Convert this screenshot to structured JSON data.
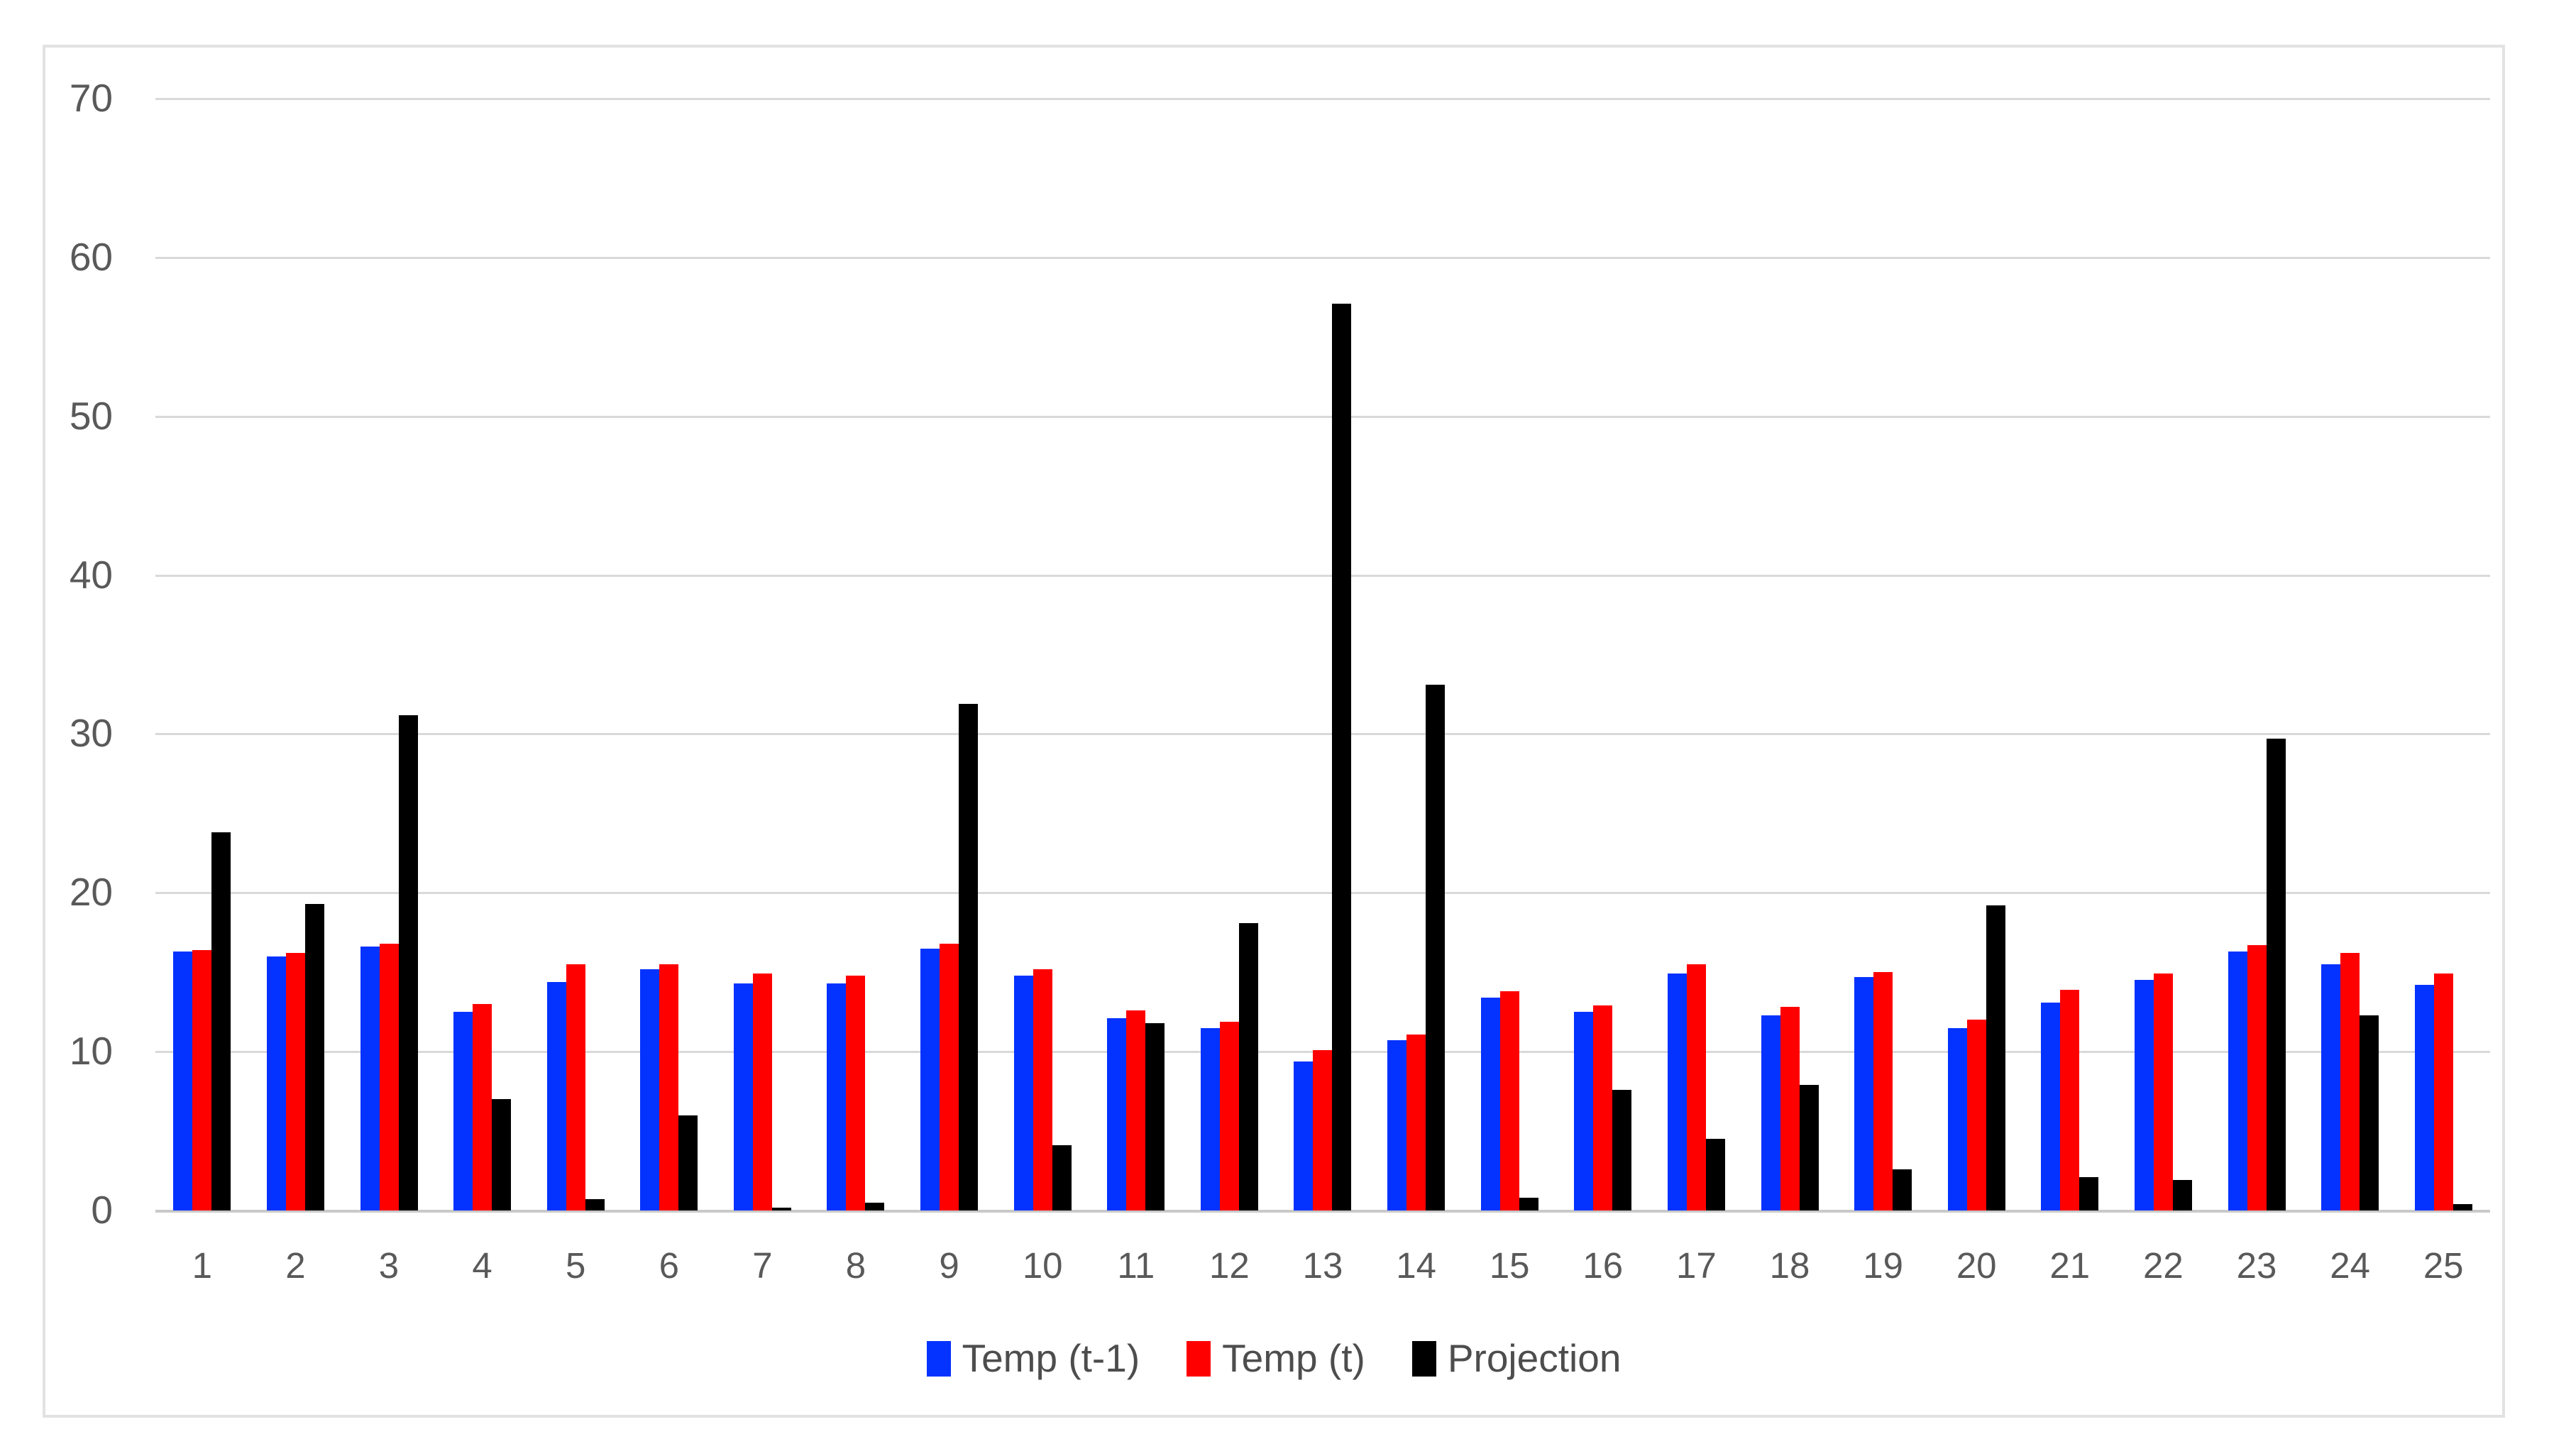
{
  "chart_data": {
    "type": "bar",
    "title": "",
    "xlabel": "",
    "ylabel": "",
    "categories": [
      "1",
      "2",
      "3",
      "4",
      "5",
      "6",
      "7",
      "8",
      "9",
      "10",
      "11",
      "12",
      "13",
      "14",
      "15",
      "16",
      "17",
      "18",
      "19",
      "20",
      "21",
      "22",
      "23",
      "24",
      "25"
    ],
    "series": [
      {
        "name": "Temp (t-1)",
        "color": "#0432ff",
        "values": [
          16.3,
          16.0,
          16.6,
          12.5,
          14.4,
          15.2,
          14.3,
          14.3,
          16.5,
          14.8,
          12.1,
          11.5,
          9.4,
          10.7,
          13.4,
          12.5,
          14.9,
          12.3,
          14.7,
          11.5,
          13.1,
          14.5,
          16.3,
          15.5,
          14.2
        ]
      },
      {
        "name": "Temp (t)",
        "color": "#fe0000",
        "values": [
          16.4,
          16.2,
          16.8,
          13.0,
          15.5,
          15.5,
          14.9,
          14.8,
          16.8,
          15.2,
          12.6,
          11.9,
          10.1,
          11.1,
          13.8,
          12.9,
          15.5,
          12.8,
          15.0,
          12.0,
          13.9,
          14.9,
          16.7,
          16.2,
          14.9
        ]
      },
      {
        "name": "Projection",
        "color": "#000000",
        "values": [
          23.8,
          19.3,
          31.2,
          7.0,
          0.7,
          6.0,
          0.2,
          0.5,
          31.9,
          4.1,
          11.8,
          18.1,
          57.1,
          33.1,
          0.8,
          7.6,
          4.5,
          7.9,
          2.6,
          19.2,
          2.1,
          1.9,
          29.7,
          12.3,
          0.4
        ]
      }
    ],
    "ylim": [
      0,
      70
    ],
    "yticks": [
      0,
      10,
      20,
      30,
      40,
      50,
      60,
      70
    ],
    "grid": true,
    "legend_position": "bottom"
  },
  "style": {
    "gridline_color": "#d9d9d9",
    "baseline_color": "#c9c9c9",
    "tick_label_color": "#595959",
    "legend_text_color": "#4d4d4d",
    "card_border_color": "#e2e2e2",
    "background_color": "#ffffff"
  }
}
